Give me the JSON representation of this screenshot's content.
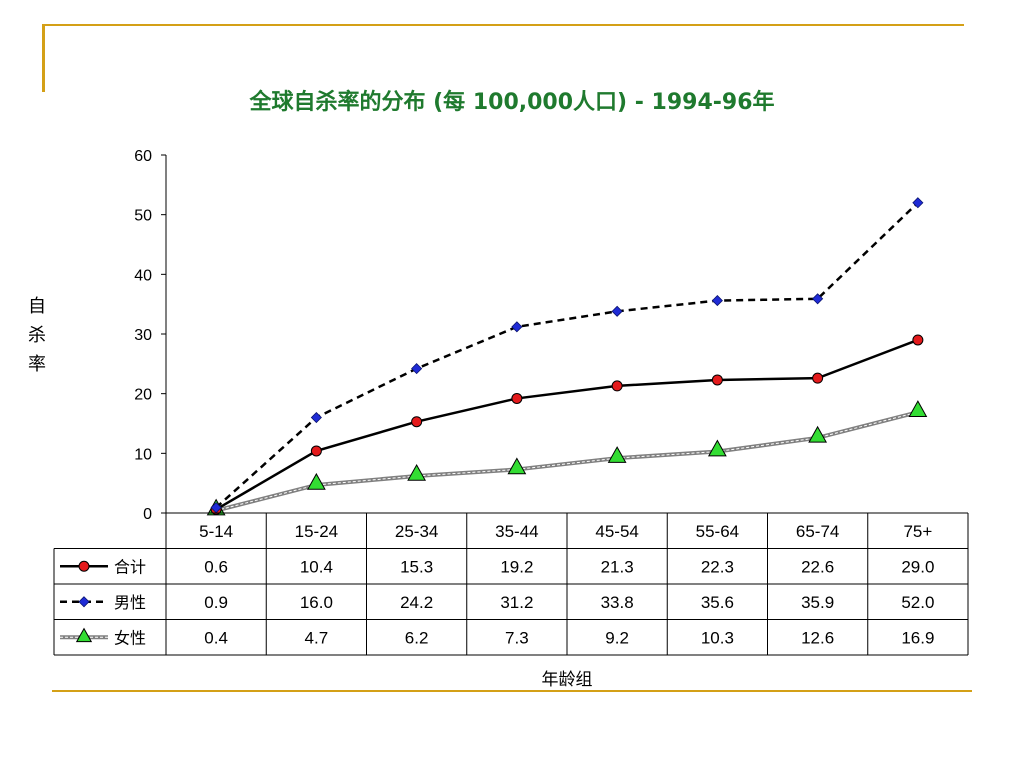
{
  "colors": {
    "title": "#1f7a2e",
    "rule": "#d4a017",
    "total": "#000000",
    "total_marker": "#e41a1c",
    "male": "#000000",
    "male_marker": "#1f2bd6",
    "female": "#808080",
    "female_marker": "#33dd33"
  },
  "chart_data": {
    "type": "line",
    "title": "全球自杀率的分布 (每 100,000人口) - 1994-96年",
    "ylabel": "自杀率",
    "xlabel": "年龄组",
    "ylim": [
      0,
      60
    ],
    "yticks": [
      "0",
      "10",
      "20",
      "30",
      "40",
      "50",
      "60"
    ],
    "categories": [
      "5-14",
      "15-24",
      "25-34",
      "35-44",
      "45-54",
      "55-64",
      "65-74",
      "75+"
    ],
    "series": [
      {
        "name": "合计",
        "values": [
          0.6,
          10.4,
          15.3,
          19.2,
          21.3,
          22.3,
          22.6,
          29.0
        ],
        "labels": [
          "0.6",
          "10.4",
          "15.3",
          "19.2",
          "21.3",
          "22.3",
          "22.6",
          "29.0"
        ],
        "marker": "circle",
        "line": "solid"
      },
      {
        "name": "男性",
        "values": [
          0.9,
          16.0,
          24.2,
          31.2,
          33.8,
          35.6,
          35.9,
          52.0
        ],
        "labels": [
          "0.9",
          "16.0",
          "24.2",
          "31.2",
          "33.8",
          "35.6",
          "35.9",
          "52.0"
        ],
        "marker": "diamond",
        "line": "dashed"
      },
      {
        "name": "女性",
        "values": [
          0.4,
          4.7,
          6.2,
          7.3,
          9.2,
          10.3,
          12.6,
          16.9
        ],
        "labels": [
          "0.4",
          "4.7",
          "6.2",
          "7.3",
          "9.2",
          "10.3",
          "12.6",
          "16.9"
        ],
        "marker": "triangle",
        "line": "gray"
      }
    ],
    "grid": false,
    "legend": "data-table"
  }
}
